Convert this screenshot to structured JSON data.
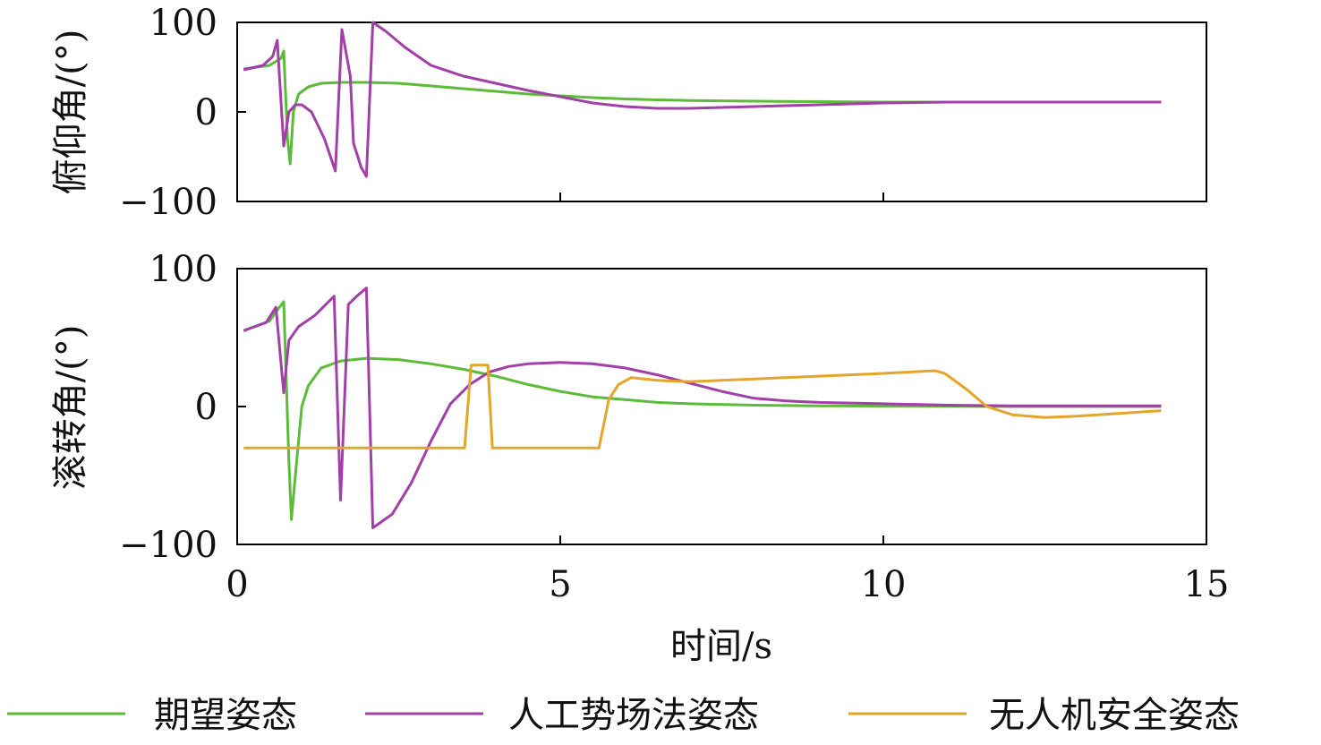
{
  "chart_data": [
    {
      "type": "line",
      "panel": "top",
      "ylabel": "俯仰角/(°)",
      "xlabel": "",
      "xlim": [
        0,
        15
      ],
      "ylim": [
        -100,
        100
      ],
      "yticks": [
        100,
        0,
        -100
      ],
      "ytick_labels": [
        "100",
        "0",
        "−100"
      ],
      "xticks": [
        5,
        10
      ],
      "series": [
        {
          "name": "期望姿态",
          "color": "#5dbb3a",
          "points": [
            [
              0.1,
              48
            ],
            [
              0.5,
              52
            ],
            [
              0.68,
              60
            ],
            [
              0.72,
              68
            ],
            [
              0.78,
              -30
            ],
            [
              0.82,
              -58
            ],
            [
              0.87,
              0
            ],
            [
              0.95,
              20
            ],
            [
              1.1,
              28
            ],
            [
              1.3,
              32
            ],
            [
              1.6,
              33
            ],
            [
              2.0,
              33
            ],
            [
              2.5,
              32
            ],
            [
              3.0,
              29
            ],
            [
              3.5,
              26
            ],
            [
              4.0,
              23
            ],
            [
              4.5,
              20
            ],
            [
              5.0,
              18
            ],
            [
              5.5,
              16
            ],
            [
              6.0,
              14.5
            ],
            [
              6.5,
              13.5
            ],
            [
              7.0,
              12.8
            ],
            [
              8.0,
              12
            ],
            [
              9.0,
              11.5
            ],
            [
              10.0,
              11
            ],
            [
              11.0,
              11
            ],
            [
              12.0,
              11
            ],
            [
              13.0,
              11
            ],
            [
              14.3,
              11
            ]
          ]
        },
        {
          "name": "人工势场法姿态",
          "color": "#a23fa8",
          "points": [
            [
              0.1,
              47
            ],
            [
              0.4,
              52
            ],
            [
              0.55,
              62
            ],
            [
              0.62,
              80
            ],
            [
              0.72,
              -38
            ],
            [
              0.8,
              0
            ],
            [
              0.9,
              8
            ],
            [
              1.0,
              8
            ],
            [
              1.15,
              0
            ],
            [
              1.35,
              -30
            ],
            [
              1.52,
              -66
            ],
            [
              1.62,
              92
            ],
            [
              1.75,
              40
            ],
            [
              1.8,
              -35
            ],
            [
              1.92,
              -62
            ],
            [
              2.0,
              -72
            ],
            [
              2.1,
              100
            ],
            [
              2.3,
              90
            ],
            [
              2.6,
              72
            ],
            [
              3.0,
              52
            ],
            [
              3.5,
              40
            ],
            [
              4.0,
              32
            ],
            [
              4.5,
              24
            ],
            [
              5.0,
              17
            ],
            [
              5.5,
              10
            ],
            [
              6.0,
              6
            ],
            [
              6.5,
              4
            ],
            [
              7.0,
              4
            ],
            [
              8.0,
              6
            ],
            [
              9.0,
              8
            ],
            [
              10.0,
              10
            ],
            [
              11.0,
              11
            ],
            [
              12.0,
              11
            ],
            [
              14.3,
              11
            ]
          ]
        }
      ]
    },
    {
      "type": "line",
      "panel": "bottom",
      "ylabel": "滚转角/(°)",
      "xlabel": "时间/s",
      "xlim": [
        0,
        15
      ],
      "ylim": [
        -100,
        100
      ],
      "yticks": [
        100,
        0,
        -100
      ],
      "ytick_labels": [
        "100",
        "0",
        "−100"
      ],
      "xticks": [
        0,
        5,
        10,
        15
      ],
      "xtick_labels": [
        "0",
        "5",
        "10",
        "15"
      ],
      "series": [
        {
          "name": "期望姿态",
          "color": "#5dbb3a",
          "points": [
            [
              0.1,
              55
            ],
            [
              0.5,
              62
            ],
            [
              0.62,
              70
            ],
            [
              0.72,
              76
            ],
            [
              0.8,
              -40
            ],
            [
              0.84,
              -82
            ],
            [
              0.9,
              -50
            ],
            [
              1.0,
              0
            ],
            [
              1.1,
              15
            ],
            [
              1.3,
              28
            ],
            [
              1.6,
              33
            ],
            [
              2.0,
              35
            ],
            [
              2.5,
              34
            ],
            [
              3.0,
              31
            ],
            [
              3.5,
              27
            ],
            [
              4.0,
              22
            ],
            [
              4.5,
              16
            ],
            [
              5.0,
              11
            ],
            [
              5.5,
              7
            ],
            [
              6.0,
              5
            ],
            [
              6.5,
              3
            ],
            [
              7.0,
              2
            ],
            [
              8.0,
              1
            ],
            [
              9.0,
              0.5
            ],
            [
              10.0,
              0.3
            ],
            [
              12.0,
              0
            ],
            [
              14.3,
              0
            ]
          ]
        },
        {
          "name": "人工势场法姿态",
          "color": "#a23fa8",
          "points": [
            [
              0.1,
              55
            ],
            [
              0.45,
              61
            ],
            [
              0.6,
              72
            ],
            [
              0.72,
              10
            ],
            [
              0.8,
              48
            ],
            [
              0.95,
              58
            ],
            [
              1.2,
              66
            ],
            [
              1.5,
              80
            ],
            [
              1.6,
              -68
            ],
            [
              1.72,
              74
            ],
            [
              1.85,
              80
            ],
            [
              2.0,
              86
            ],
            [
              2.1,
              -88
            ],
            [
              2.4,
              -78
            ],
            [
              2.7,
              -55
            ],
            [
              3.0,
              -25
            ],
            [
              3.3,
              2
            ],
            [
              3.6,
              16
            ],
            [
              3.9,
              25
            ],
            [
              4.2,
              29
            ],
            [
              4.5,
              31
            ],
            [
              5.0,
              32
            ],
            [
              5.5,
              31
            ],
            [
              6.0,
              28
            ],
            [
              6.5,
              23
            ],
            [
              7.0,
              17
            ],
            [
              7.5,
              11
            ],
            [
              8.0,
              6
            ],
            [
              8.5,
              4
            ],
            [
              9.0,
              3
            ],
            [
              10.0,
              2
            ],
            [
              11.0,
              1
            ],
            [
              12.0,
              0.5
            ],
            [
              13.0,
              0.5
            ],
            [
              14.3,
              0.5
            ]
          ]
        },
        {
          "name": "无人机安全姿态",
          "color": "#e4a52b",
          "points": [
            [
              0.1,
              -30
            ],
            [
              3.52,
              -30
            ],
            [
              3.62,
              30
            ],
            [
              3.88,
              30
            ],
            [
              3.95,
              -30
            ],
            [
              5.6,
              -30
            ],
            [
              5.75,
              5
            ],
            [
              5.9,
              16
            ],
            [
              6.1,
              21
            ],
            [
              6.5,
              19
            ],
            [
              7.0,
              18
            ],
            [
              8.0,
              20
            ],
            [
              9.0,
              22
            ],
            [
              10.0,
              24
            ],
            [
              10.8,
              26
            ],
            [
              10.95,
              24
            ],
            [
              11.3,
              12
            ],
            [
              11.6,
              0
            ],
            [
              12.0,
              -6
            ],
            [
              12.5,
              -8
            ],
            [
              13.0,
              -7
            ],
            [
              14.3,
              -3
            ]
          ]
        }
      ]
    }
  ],
  "legend": {
    "placement": "bottom",
    "items": [
      {
        "label": "期望姿态",
        "color": "#5dbb3a"
      },
      {
        "label": "人工势场法姿态",
        "color": "#a23fa8"
      },
      {
        "label": "无人机安全姿态",
        "color": "#e4a52b"
      }
    ]
  }
}
